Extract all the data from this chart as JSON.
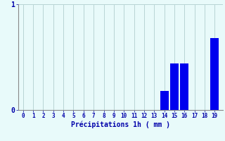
{
  "hours": [
    0,
    1,
    2,
    3,
    4,
    5,
    6,
    7,
    8,
    9,
    10,
    11,
    12,
    13,
    14,
    15,
    16,
    17,
    18,
    19
  ],
  "values": [
    0,
    0,
    0,
    0,
    0,
    0,
    0,
    0,
    0,
    0,
    0,
    0,
    0,
    0,
    0.18,
    0.44,
    0.44,
    0,
    0,
    0.68
  ],
  "bar_color": "#0000ee",
  "bg_color": "#e8fafa",
  "grid_color": "#b8d4d4",
  "axis_color": "#888888",
  "xlabel": "Précipitations 1h ( mm )",
  "xlabel_color": "#0000aa",
  "tick_color": "#0000aa",
  "ylim": [
    0,
    1.0
  ],
  "yticks": [
    0,
    1
  ],
  "xlim": [
    -0.5,
    19.8
  ],
  "bar_width": 0.85
}
